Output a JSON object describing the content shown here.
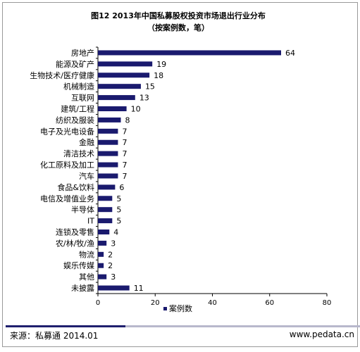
{
  "chart_data": {
    "type": "bar",
    "orientation": "horizontal",
    "title": "图12 2013年中国私募股权投资市场退出行业分布",
    "subtitle": "（按案例数，笔）",
    "categories": [
      "房地产",
      "能源及矿产",
      "生物技术/医疗健康",
      "机械制造",
      "互联网",
      "建筑/工程",
      "纺织及服装",
      "电子及光电设备",
      "金融",
      "清洁技术",
      "化工原料及加工",
      "汽车",
      "食品&饮料",
      "电信及增值业务",
      "半导体",
      "IT",
      "连锁及零售",
      "农/林/牧/渔",
      "物流",
      "娱乐传媒",
      "其他",
      "未披露"
    ],
    "series": [
      {
        "name": "案例数",
        "values": [
          64,
          19,
          18,
          15,
          13,
          10,
          8,
          7,
          7,
          7,
          7,
          7,
          6,
          5,
          5,
          5,
          4,
          3,
          2,
          2,
          3,
          11
        ],
        "color": "#1a1a6e"
      }
    ],
    "xlim": [
      0,
      80
    ],
    "xticks": [
      "0",
      "20",
      "40",
      "60",
      "80"
    ],
    "legend": "bottom"
  },
  "footer": {
    "source": "来源：私募通  2014.01",
    "website": "www.pedata.cn"
  }
}
